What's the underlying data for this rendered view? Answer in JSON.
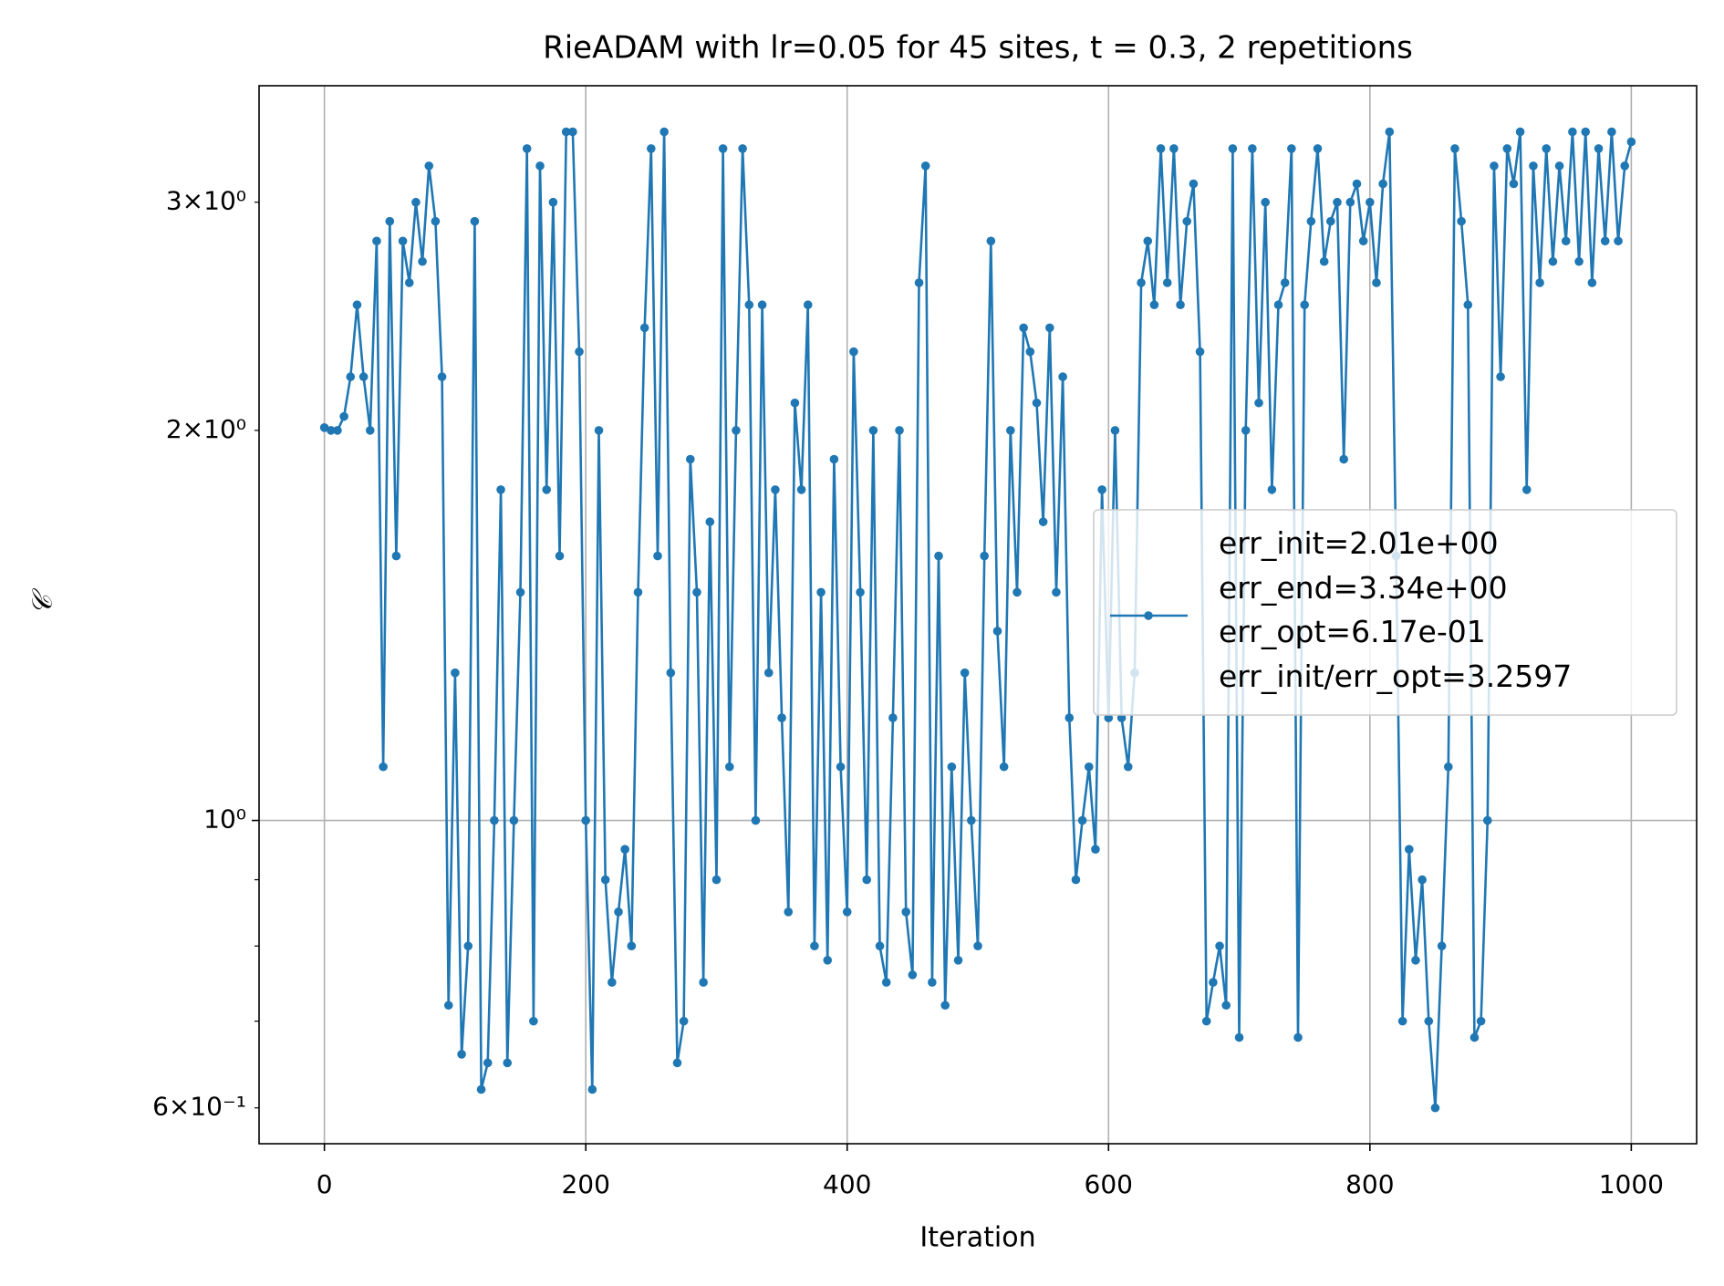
{
  "chart_data": {
    "type": "line",
    "title": "RieADAM with lr=0.05 for 45 sites, t = 0.3, 2 repetitions",
    "xlabel": "Iteration",
    "ylabel": "𝒞",
    "x": [
      0,
      5,
      10,
      15,
      20,
      25,
      30,
      35,
      40,
      45,
      50,
      55,
      60,
      65,
      70,
      75,
      80,
      85,
      90,
      95,
      100,
      105,
      110,
      115,
      120,
      125,
      130,
      135,
      140,
      145,
      150,
      155,
      160,
      165,
      170,
      175,
      180,
      185,
      190,
      195,
      200,
      205,
      210,
      215,
      220,
      225,
      230,
      235,
      240,
      245,
      250,
      255,
      260,
      265,
      270,
      275,
      280,
      285,
      290,
      295,
      300,
      305,
      310,
      315,
      320,
      325,
      330,
      335,
      340,
      345,
      350,
      355,
      360,
      365,
      370,
      375,
      380,
      385,
      390,
      395,
      400,
      405,
      410,
      415,
      420,
      425,
      430,
      435,
      440,
      445,
      450,
      455,
      460,
      465,
      470,
      475,
      480,
      485,
      490,
      495,
      500,
      505,
      510,
      515,
      520,
      525,
      530,
      535,
      540,
      545,
      550,
      555,
      560,
      565,
      570,
      575,
      580,
      585,
      590,
      595,
      600,
      605,
      610,
      615,
      620,
      625,
      630,
      635,
      640,
      645,
      650,
      655,
      660,
      665,
      670,
      675,
      680,
      685,
      690,
      695,
      700,
      705,
      710,
      715,
      720,
      725,
      730,
      735,
      740,
      745,
      750,
      755,
      760,
      765,
      770,
      775,
      780,
      785,
      790,
      795,
      800,
      805,
      810,
      815,
      820,
      825,
      830,
      835,
      840,
      845,
      850,
      855,
      860,
      865,
      870,
      875,
      880,
      885,
      890,
      895,
      900,
      905,
      910,
      915,
      920,
      925,
      930,
      935,
      940,
      945,
      950,
      955,
      960,
      965,
      970,
      975,
      980,
      985,
      990,
      995,
      1000
    ],
    "series": [
      {
        "name": "err_init=2.01e+00\nerr_end=3.34e+00\nerr_opt=6.17e-01\nerr_init/err_opt=3.2597",
        "color": "#1f77b4",
        "values": [
          2.01,
          2.0,
          2.0,
          2.05,
          2.2,
          2.5,
          2.2,
          2.0,
          2.8,
          1.1,
          2.9,
          1.6,
          2.8,
          2.6,
          3.0,
          2.7,
          3.2,
          2.9,
          2.2,
          0.72,
          1.3,
          0.66,
          0.8,
          2.9,
          0.62,
          0.65,
          1.0,
          1.8,
          0.65,
          1.0,
          1.5,
          3.3,
          0.7,
          3.2,
          1.8,
          3.0,
          1.6,
          3.4,
          3.4,
          2.3,
          1.0,
          0.62,
          2.0,
          0.9,
          0.75,
          0.85,
          0.95,
          0.8,
          1.5,
          2.4,
          3.3,
          1.6,
          3.4,
          1.3,
          0.65,
          0.7,
          1.9,
          1.5,
          0.75,
          1.7,
          0.9,
          3.3,
          1.1,
          2.0,
          3.3,
          2.5,
          1.0,
          2.5,
          1.3,
          1.8,
          1.2,
          0.85,
          2.1,
          1.8,
          2.5,
          0.8,
          1.5,
          0.78,
          1.9,
          1.1,
          0.85,
          2.3,
          1.5,
          0.9,
          2.0,
          0.8,
          0.75,
          1.2,
          2.0,
          0.85,
          0.76,
          2.6,
          3.2,
          0.75,
          1.6,
          0.72,
          1.1,
          0.78,
          1.3,
          1.0,
          0.8,
          1.6,
          2.8,
          1.4,
          1.1,
          2.0,
          1.5,
          2.4,
          2.3,
          2.1,
          1.7,
          2.4,
          1.5,
          2.2,
          1.2,
          0.9,
          1.0,
          1.1,
          0.95,
          1.8,
          1.2,
          2.0,
          1.2,
          1.1,
          1.3,
          2.6,
          2.8,
          2.5,
          3.3,
          2.6,
          3.3,
          2.5,
          2.9,
          3.1,
          2.3,
          0.7,
          0.75,
          0.8,
          0.72,
          3.3,
          0.68,
          2.0,
          3.3,
          2.1,
          3.0,
          1.8,
          2.5,
          2.6,
          3.3,
          0.68,
          2.5,
          2.9,
          3.3,
          2.7,
          2.9,
          3.0,
          1.9,
          3.0,
          3.1,
          2.8,
          3.0,
          2.6,
          3.1,
          3.4,
          1.6,
          0.7,
          0.95,
          0.78,
          0.9,
          0.7,
          0.6,
          0.8,
          1.1,
          3.3,
          2.9,
          2.5,
          0.68,
          0.7,
          1.0,
          3.2,
          2.2,
          3.3,
          3.1,
          3.4,
          1.8,
          3.2,
          2.6,
          3.3,
          2.7,
          3.2,
          2.8,
          3.4,
          2.7,
          3.4,
          2.6,
          3.3,
          2.8,
          3.4,
          2.8,
          3.2,
          3.34
        ]
      }
    ],
    "xlim": [
      -50,
      1050
    ],
    "xticks": [
      0,
      200,
      400,
      600,
      800,
      1000
    ],
    "ylim": [
      0.563,
      3.69
    ],
    "log_y": true,
    "yticks": [
      {
        "value": 1,
        "label": "10⁰"
      }
    ],
    "yticks_minor": [
      {
        "value": 0.6,
        "label": "6×10⁻¹"
      },
      0.7,
      0.8,
      0.9,
      {
        "value": 2,
        "label": "2×10⁰"
      },
      {
        "value": 3,
        "label": "3×10⁰"
      }
    ],
    "grid": true,
    "legend": "center right"
  }
}
